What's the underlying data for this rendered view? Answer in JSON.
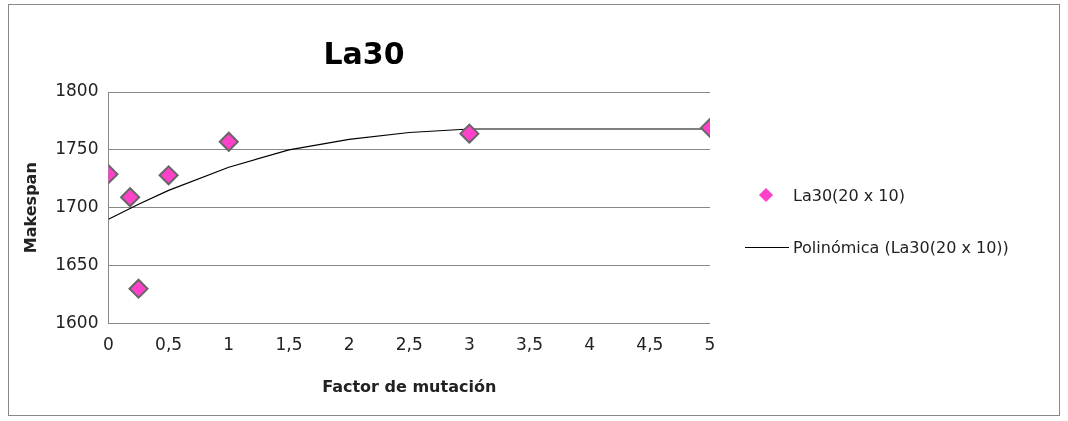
{
  "chart_data": {
    "type": "scatter",
    "title": "La30",
    "xlabel": "Factor de mutación",
    "ylabel": "Makespan",
    "series": [
      {
        "name": "La30(20 x 10)",
        "type": "scatter",
        "color": "#ff40c8",
        "marker": "diamond",
        "x": [
          0,
          0.18,
          0.25,
          0.5,
          1,
          3,
          5
        ],
        "values": [
          1729,
          1709,
          1630,
          1728,
          1757,
          1764,
          1769
        ]
      },
      {
        "name": "Polinómica (La30(20 x 10))",
        "type": "line",
        "color": "#000000",
        "marker": "none",
        "line_style": "solid",
        "x": [
          0,
          0.25,
          0.5,
          1,
          1.5,
          2,
          2.5,
          3,
          4,
          5
        ],
        "values": [
          1690,
          1703,
          1715,
          1735,
          1750,
          1759,
          1765,
          1768,
          1768,
          1768
        ]
      }
    ],
    "xlim": [
      0,
      5
    ],
    "xticks": [
      0,
      {
        "value": 0.5,
        "label": "0,5"
      },
      1,
      {
        "value": 1.5,
        "label": "1,5"
      },
      2,
      {
        "value": 2.5,
        "label": "2,5"
      },
      3,
      {
        "value": 3.5,
        "label": "3,5"
      },
      4,
      {
        "value": 4.5,
        "label": "4,5"
      },
      5
    ],
    "ylim": [
      1600,
      1800
    ],
    "yticks": [
      1600,
      1650,
      1700,
      1750,
      1800
    ],
    "grid": "y",
    "legend": "right"
  }
}
